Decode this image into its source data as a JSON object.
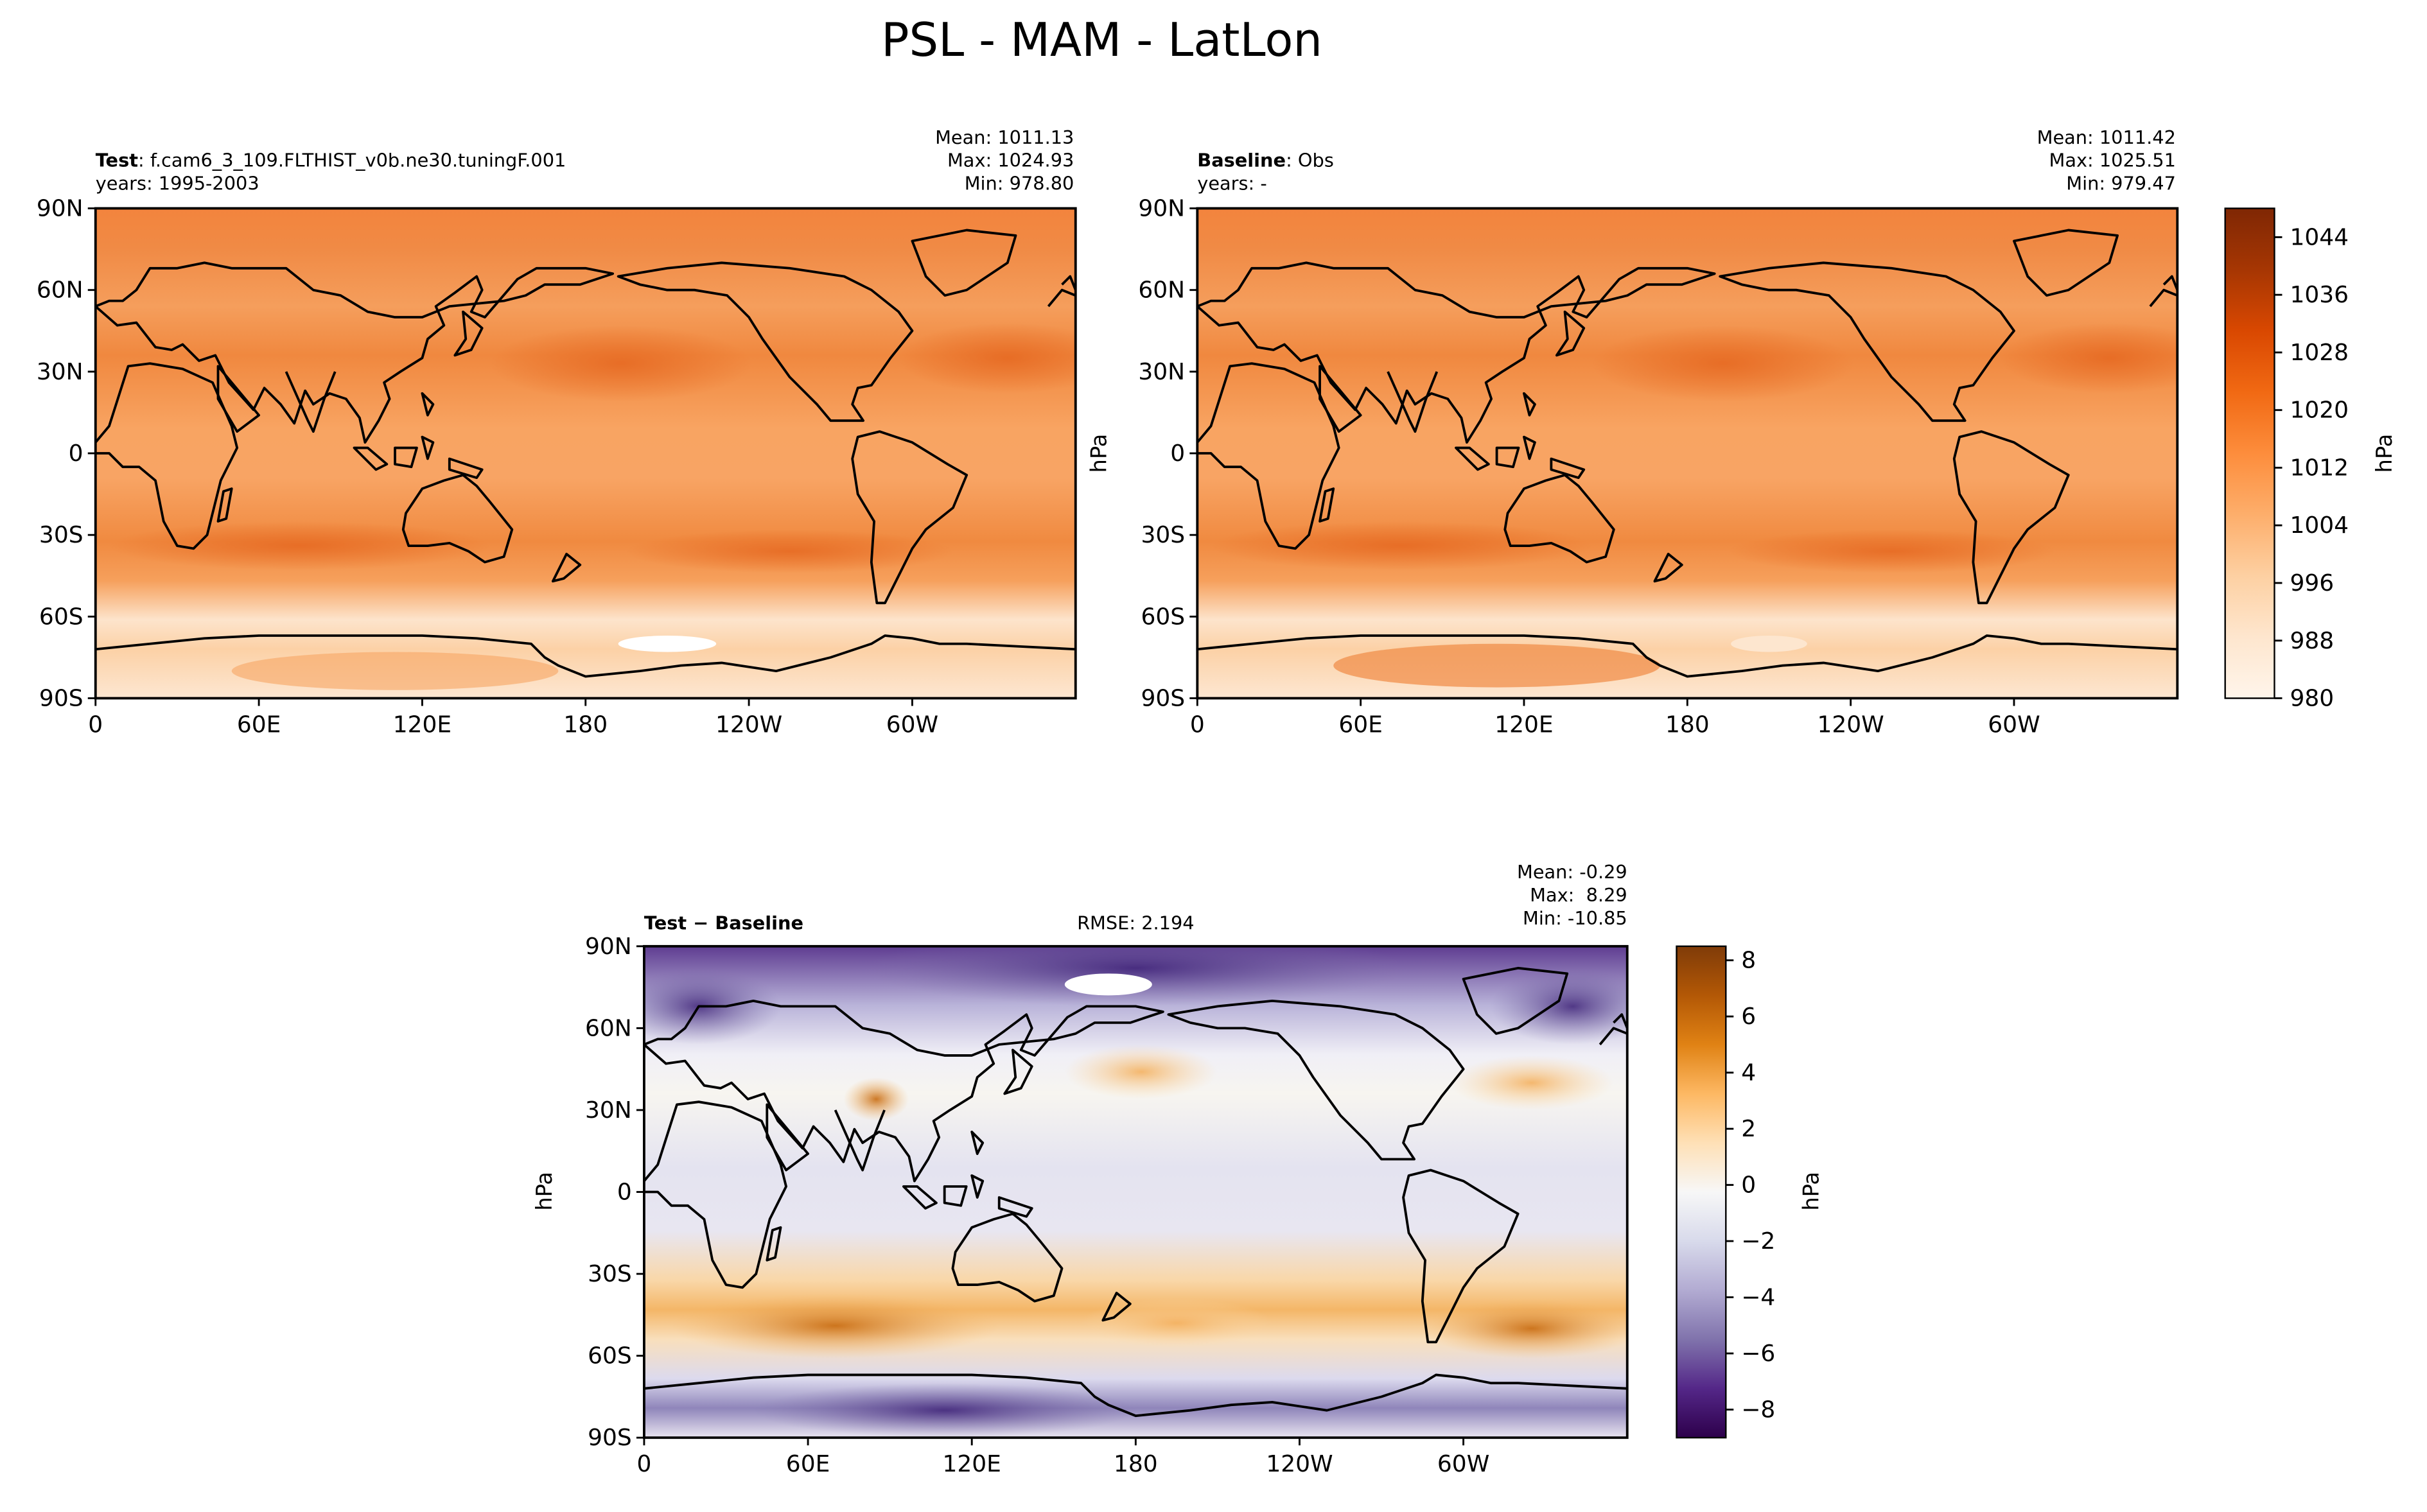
{
  "figure": {
    "title": "PSL - MAM - LatLon"
  },
  "axis_ticks": {
    "lat": [
      "90N",
      "60N",
      "30N",
      "0",
      "30S",
      "60S",
      "90S"
    ],
    "lon": [
      "0",
      "60E",
      "120E",
      "180",
      "120W",
      "60W"
    ]
  },
  "panels": {
    "test": {
      "label_bold": "Test",
      "label_rest": ": f.cam6_3_109.FLTHIST_v0b.ne30.tuningF.001",
      "years": "years: 1995-2003",
      "stats": [
        "Mean: 1011.13",
        "Max: 1024.93",
        "Min: 978.80"
      ]
    },
    "baseline": {
      "label_bold": "Baseline",
      "label_rest": ": Obs",
      "years": "years: -",
      "ylabel": "hPa",
      "stats": [
        "Mean: 1011.42",
        "Max: 1025.51",
        "Min: 979.47"
      ]
    },
    "diff": {
      "label": "Test − Baseline",
      "rmse": "RMSE: 2.194",
      "ylabel": "hPa",
      "stats": [
        "Mean: -0.29",
        "Max:  8.29",
        "Min: -10.85"
      ]
    }
  },
  "colorbars": {
    "psl": {
      "label": "hPa",
      "ticks": [
        "1044",
        "1036",
        "1028",
        "1020",
        "1012",
        "1004",
        "996",
        "988",
        "980"
      ],
      "range": [
        980,
        1048
      ],
      "colormap": "Oranges",
      "colors": [
        "#fff5eb",
        "#fee6ce",
        "#fdd0a2",
        "#fdae6b",
        "#fd8d3c",
        "#f16913",
        "#d94801",
        "#a63603",
        "#7f2704"
      ]
    },
    "diff": {
      "label": "hPa",
      "ticks": [
        "8",
        "6",
        "4",
        "2",
        "0",
        "−2",
        "−4",
        "−6",
        "−8"
      ],
      "range": [
        -9,
        8.5
      ],
      "colormap": "PuOr_r",
      "colors": [
        "#2d004b",
        "#542788",
        "#8073ac",
        "#b2abd2",
        "#d8daeb",
        "#f7f7f7",
        "#fee0b6",
        "#fdb863",
        "#e08214",
        "#b35806",
        "#7f3b08"
      ]
    }
  }
}
